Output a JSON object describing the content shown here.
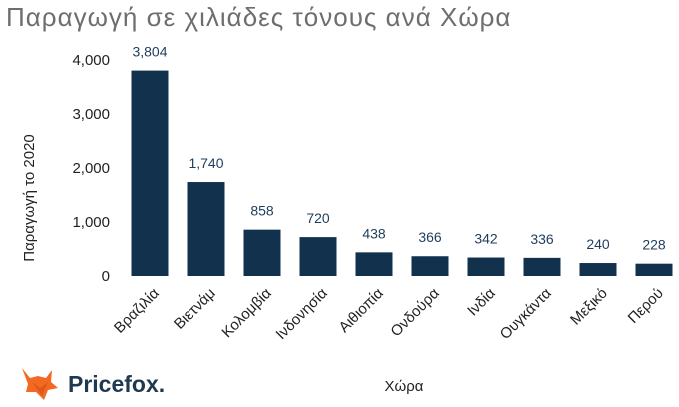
{
  "title": "Παραγωγή σε χιλιάδες τόνους ανά Χώρα",
  "brand": {
    "name": "Pricefox.",
    "fox_color": "#f26a21",
    "text_color": "#1f3950"
  },
  "chart_data": {
    "type": "bar",
    "title": "Παραγωγή σε χιλιάδες τόνους ανά Χώρα",
    "xlabel": "Χώρα",
    "ylabel": "Παραγωγή το 2020",
    "categories": [
      "Βραζιλία",
      "Βιετνάμ",
      "Κολομβία",
      "Ινδονησία",
      "Αιθιοπία",
      "Ονδούρα",
      "Ινδία",
      "Ουγκάντα",
      "Μεξικό",
      "Περού"
    ],
    "values": [
      3804,
      1740,
      858,
      720,
      438,
      366,
      342,
      336,
      240,
      228
    ],
    "value_labels": [
      "3,804",
      "1,740",
      "858",
      "720",
      "438",
      "366",
      "342",
      "336",
      "240",
      "228"
    ],
    "yticks": [
      0,
      1000,
      2000,
      3000,
      4000
    ],
    "ytick_labels": [
      "0",
      "1,000",
      "2,000",
      "3,000",
      "4,000"
    ],
    "ylim": [
      0,
      4000
    ],
    "bar_color": "#11314d",
    "label_color": "#1f3d5c",
    "grid": false,
    "legend": "none"
  }
}
